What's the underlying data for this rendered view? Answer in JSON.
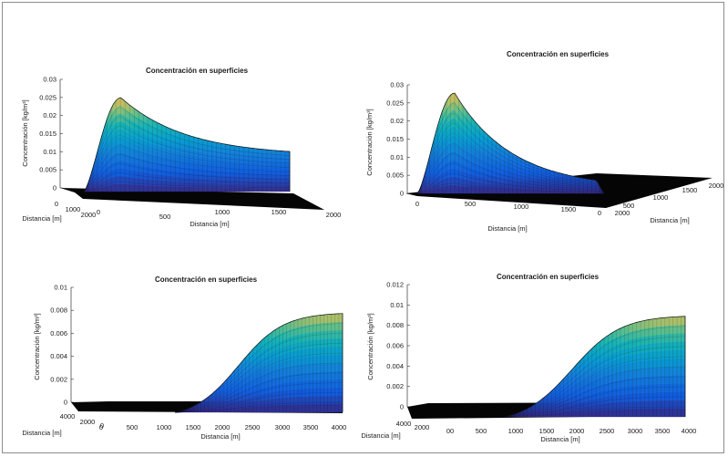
{
  "chart_data": [
    {
      "type": "surface",
      "title": "Concentración en superficies",
      "zlabel": "Concentración [kg/m³]",
      "xlabel": "Distancia [m]",
      "ylabel": "Distancia [m]",
      "z_ticks": [
        "0",
        "0.005",
        "0.01",
        "0.015",
        "0.02",
        "0.025",
        "0.03"
      ],
      "x_ticks": [
        "0",
        "500",
        "1000",
        "1500",
        "2000"
      ],
      "y_ticks": [
        "0",
        "1000",
        "2000"
      ],
      "zlim": [
        0,
        0.03
      ],
      "peak_value": 0.0275,
      "plateau_value": 0.0105
    },
    {
      "type": "surface",
      "title": "Concentración en superficies",
      "zlabel": "Concentración [kg/m³]",
      "xlabel": "Distancia [m]",
      "ylabel": "Distancia [m]",
      "z_ticks": [
        "0",
        "0.005",
        "0.01",
        "0.015",
        "0.02",
        "0.025",
        "0.03"
      ],
      "x_ticks": [
        "0",
        "500",
        "1000",
        "1500",
        "2000"
      ],
      "y_ticks": [
        "0",
        "500",
        "1000",
        "1500",
        "2000"
      ],
      "zlim": [
        0,
        0.03
      ],
      "peak_value": 0.028
    },
    {
      "type": "surface",
      "title": "Concentración en superficies",
      "zlabel": "Concentración [kg/m³]",
      "xlabel": "Distancia [m]",
      "ylabel": "Distancia [m]",
      "z_ticks": [
        "0",
        "0.002",
        "0.004",
        "0.006",
        "0.008",
        "0.01"
      ],
      "x_ticks": [
        "0",
        "500",
        "1000",
        "1500",
        "2000",
        "2500",
        "3000",
        "3500",
        "4000"
      ],
      "y_ticks": [
        "4000",
        "2000",
        "0"
      ],
      "zlim": [
        0,
        0.01
      ],
      "onset_x": 1300,
      "max_value": 0.0083
    },
    {
      "type": "surface",
      "title": "Concentración en superficies",
      "zlabel": "Concentración [kg/m³]",
      "xlabel": "Distancia [m]",
      "ylabel": "Distancia [m]",
      "z_ticks": [
        "0",
        "0.002",
        "0.004",
        "0.006",
        "0.008",
        "0.01",
        "0.012"
      ],
      "x_ticks": [
        "00",
        "500",
        "1000",
        "1500",
        "2000",
        "2500",
        "3000",
        "3500",
        "4000"
      ],
      "y_ticks": [
        "4000",
        "2000"
      ],
      "zlim": [
        0,
        0.012
      ],
      "onset_x": 800,
      "max_value": 0.0099
    }
  ]
}
